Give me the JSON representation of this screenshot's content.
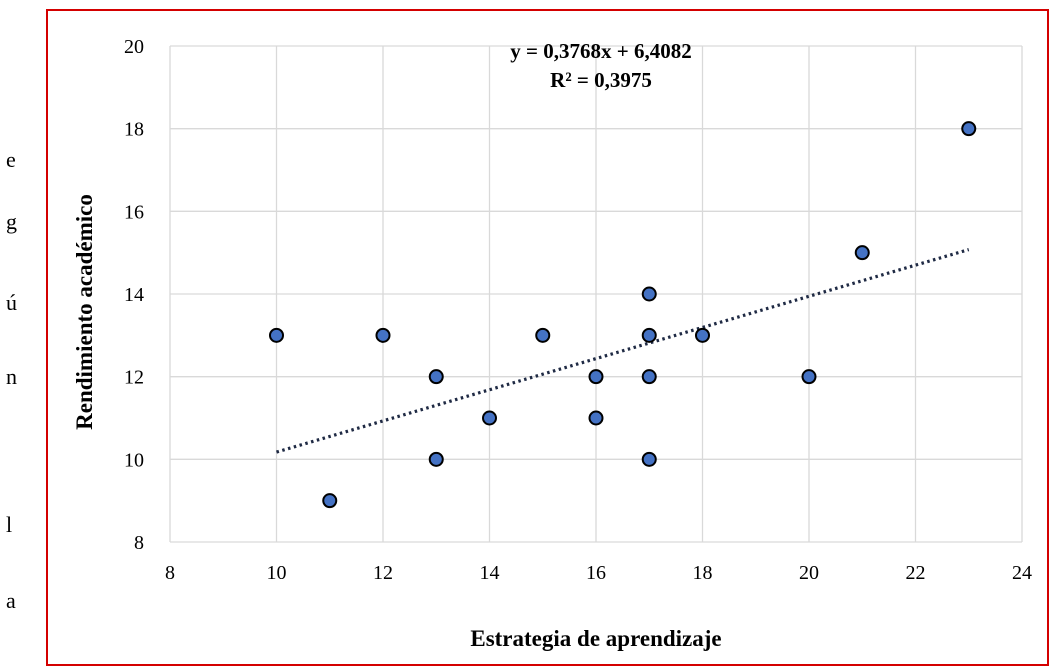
{
  "side_letters": [
    "e",
    "g",
    "ú",
    "n",
    "l",
    "a"
  ],
  "chart_data": {
    "type": "scatter",
    "xlabel": "Estrategia de aprendizaje",
    "ylabel": "Rendimiento académico",
    "xlim": [
      8,
      24
    ],
    "ylim": [
      8,
      20
    ],
    "xticks": [
      "8",
      "10",
      "12",
      "14",
      "16",
      "18",
      "20",
      "22",
      "24"
    ],
    "yticks": [
      "8",
      "10",
      "12",
      "14",
      "16",
      "18",
      "20"
    ],
    "grid": true,
    "points": [
      {
        "x": 10,
        "y": 13
      },
      {
        "x": 11,
        "y": 9
      },
      {
        "x": 12,
        "y": 13
      },
      {
        "x": 13,
        "y": 12
      },
      {
        "x": 13,
        "y": 10
      },
      {
        "x": 14,
        "y": 11
      },
      {
        "x": 15,
        "y": 13
      },
      {
        "x": 16,
        "y": 12
      },
      {
        "x": 16,
        "y": 11
      },
      {
        "x": 17,
        "y": 14
      },
      {
        "x": 17,
        "y": 13
      },
      {
        "x": 17,
        "y": 12
      },
      {
        "x": 17,
        "y": 10
      },
      {
        "x": 18,
        "y": 13
      },
      {
        "x": 20,
        "y": 12
      },
      {
        "x": 21,
        "y": 15
      },
      {
        "x": 23,
        "y": 18
      }
    ],
    "trendline": {
      "slope": 0.3768,
      "intercept": 6.4082,
      "x_range": [
        10,
        23
      ],
      "equation": "y = 0,3768x + 6,4082",
      "r2": "R² = 0,3975",
      "style": "dotted"
    },
    "colors": {
      "point_fill": "#4472c4",
      "point_stroke": "#000000",
      "grid": "#d9d9d9",
      "trendline": "#1f2a44",
      "frame": "#d40000"
    }
  }
}
